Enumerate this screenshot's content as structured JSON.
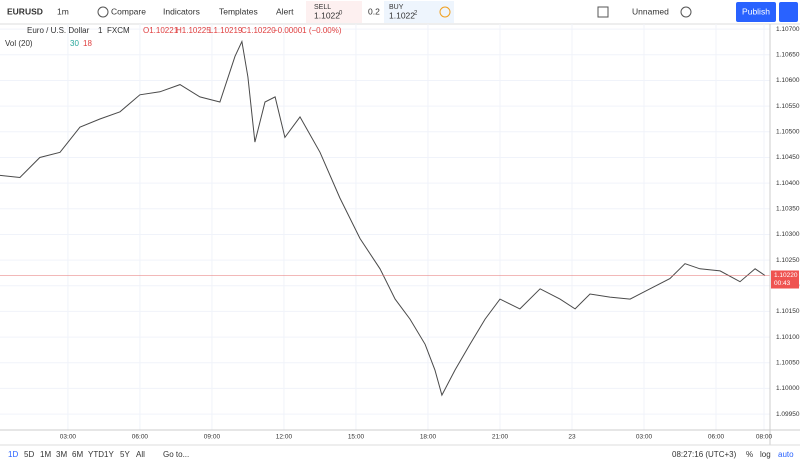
{
  "toolbar": {
    "symbol": "EURUSD",
    "interval": "1m",
    "compare": "Compare",
    "indicators": "Indicators",
    "templates": "Templates",
    "alert": "Alert",
    "sell_label": "SELL",
    "sell_price": "1.1022",
    "sell_sup": "0",
    "spread": "0.2",
    "buy_label": "BUY",
    "buy_price": "1.1022",
    "buy_sup": "2",
    "layout": "Unnamed",
    "publish": "Publish"
  },
  "legend": {
    "name": "Euro / U.S. Dollar",
    "interval": "1",
    "source": "FXCM",
    "open": "O1.10221",
    "high": "H1.10225",
    "low": "L1.10219",
    "close": "C1.10220",
    "change": "−0.00001 (−0.00%)",
    "volume": "Vol (20)",
    "vol_a": "30",
    "vol_b": "18"
  },
  "price_tag": "1.10220",
  "countdown": "00:43",
  "chart_data": {
    "type": "line",
    "color": "#4a4a4a",
    "grid": true,
    "x": [
      0.17,
      1,
      1.83,
      2.67,
      3.5,
      4.33,
      5.17,
      6,
      6.83,
      7.67,
      8.5,
      9.33,
      9.96,
      10.25,
      10.5,
      10.79,
      11.21,
      11.63,
      12.04,
      12.67,
      13.5,
      14.33,
      15.17,
      16,
      16.63,
      17.25,
      17.88,
      18.29,
      18.58,
      19.13,
      19.75,
      20.38,
      21,
      21.83,
      22.67,
      23.5,
      24.13,
      24.75,
      25.58,
      26.42,
      27.25,
      28.08,
      28.71,
      29.33,
      30.17,
      31,
      31.63,
      32.04
    ],
    "values": [
      1.10415,
      1.10411,
      1.1045,
      1.1046,
      1.10509,
      1.10525,
      1.10539,
      1.10572,
      1.10578,
      1.10592,
      1.10568,
      1.10558,
      1.10647,
      1.10676,
      1.10607,
      1.1048,
      1.10558,
      1.10568,
      1.10489,
      1.10529,
      1.1046,
      1.10371,
      1.10292,
      1.10233,
      1.10174,
      1.10135,
      1.10086,
      1.10036,
      1.09987,
      1.10036,
      1.10086,
      1.10135,
      1.10174,
      1.10155,
      1.10194,
      1.10174,
      1.10155,
      1.10184,
      1.10178,
      1.10174,
      1.10194,
      1.10214,
      1.10243,
      1.10233,
      1.10229,
      1.10208,
      1.10233,
      1.1022
    ],
    "xlim": [
      0.17,
      32.25
    ],
    "ylim": [
      1.09919,
      1.1071
    ],
    "xticks": [
      {
        "value": 3,
        "label": "03:00"
      },
      {
        "value": 6,
        "label": "06:00"
      },
      {
        "value": 9,
        "label": "09:00"
      },
      {
        "value": 12,
        "label": "12:00"
      },
      {
        "value": 15,
        "label": "15:00"
      },
      {
        "value": 18,
        "label": "18:00"
      },
      {
        "value": 21,
        "label": "21:00"
      },
      {
        "value": 24,
        "label": "23"
      },
      {
        "value": 27,
        "label": "03:00"
      },
      {
        "value": 30,
        "label": "06:00"
      },
      {
        "value": 32,
        "label": "08:00"
      }
    ],
    "yticks": [
      {
        "value": 1.0995,
        "label": "1.09950"
      },
      {
        "value": 1.1,
        "label": "1.10000"
      },
      {
        "value": 1.1005,
        "label": "1.10050"
      },
      {
        "value": 1.101,
        "label": "1.10100"
      },
      {
        "value": 1.1015,
        "label": "1.10150"
      },
      {
        "value": 1.102,
        "label": "1.10200"
      },
      {
        "value": 1.1025,
        "label": "1.10250"
      },
      {
        "value": 1.103,
        "label": "1.10300"
      },
      {
        "value": 1.1035,
        "label": "1.10350"
      },
      {
        "value": 1.104,
        "label": "1.10400"
      },
      {
        "value": 1.1045,
        "label": "1.10450"
      },
      {
        "value": 1.105,
        "label": "1.10500"
      },
      {
        "value": 1.1055,
        "label": "1.10550"
      },
      {
        "value": 1.106,
        "label": "1.10600"
      },
      {
        "value": 1.1065,
        "label": "1.10650"
      },
      {
        "value": 1.107,
        "label": "1.10700"
      }
    ]
  },
  "bottom": {
    "ranges": [
      "1D",
      "5D",
      "1M",
      "3M",
      "6M",
      "YTD",
      "1Y",
      "5Y",
      "All"
    ],
    "goto": "Go to...",
    "clock": "08:27:16 (UTC+3)",
    "percent": "%",
    "log": "log",
    "auto": "auto"
  }
}
